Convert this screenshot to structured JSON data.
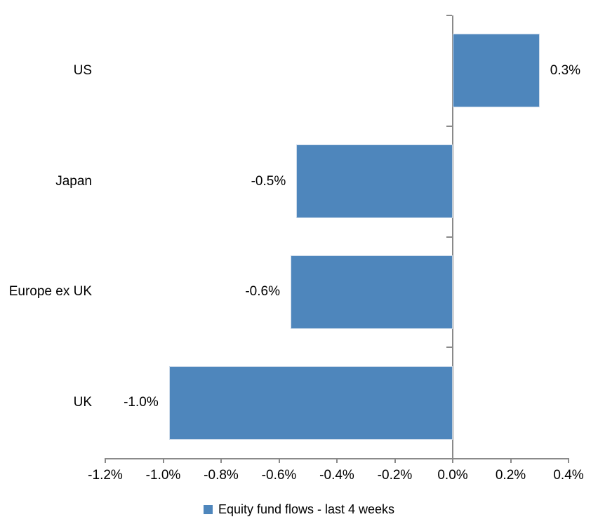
{
  "chart_data": {
    "type": "bar",
    "orientation": "horizontal",
    "title": "",
    "xlabel": "",
    "ylabel": "",
    "categories": [
      "US",
      "Japan",
      "Europe ex UK",
      "UK"
    ],
    "series": [
      {
        "name": "Equity fund flows - last 4 weeks",
        "values": [
          0.3,
          -0.5,
          -0.6,
          -1.0
        ],
        "plot_values": [
          0.3,
          -0.54,
          -0.56,
          -0.98
        ],
        "data_labels": [
          "0.3%",
          "-0.5%",
          "-0.6%",
          "-1.0%"
        ]
      }
    ],
    "xlim": [
      -1.2,
      0.4
    ],
    "xticks": [
      -1.2,
      -1.0,
      -0.8,
      -0.6,
      -0.4,
      -0.2,
      0.0,
      0.2,
      0.4
    ],
    "xtick_labels": [
      "-1.2%",
      "-1.0%",
      "-0.8%",
      "-0.6%",
      "-0.4%",
      "-0.2%",
      "0.0%",
      "0.2%",
      "0.4%"
    ],
    "grid": false,
    "legend_position": "bottom-center",
    "legend_label": "Equity fund flows - last 4 weeks",
    "colors": {
      "bar_fill": "#4E86BC",
      "bar_border": "#CEDCEB",
      "axis": "#8A8A8A",
      "text": "#000000",
      "background": "#FFFFFF"
    }
  }
}
